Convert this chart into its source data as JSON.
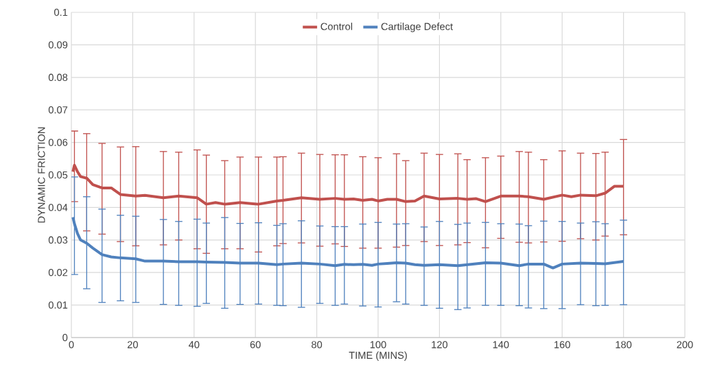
{
  "chart_data": {
    "type": "line",
    "xlabel": "TIME (MINS)",
    "ylabel": "DYNAMIC FRICTION",
    "xlim": [
      0,
      200
    ],
    "xticks": [
      0,
      20,
      40,
      60,
      80,
      100,
      120,
      140,
      160,
      180,
      200
    ],
    "ylim": [
      0,
      0.1
    ],
    "yticks": [
      0,
      0.01,
      0.02,
      0.03,
      0.04,
      0.05,
      0.06,
      0.07,
      0.08,
      0.09,
      0.1
    ],
    "grid": true,
    "legend": "top",
    "marker": "none",
    "line_style": "solid",
    "series": [
      {
        "name": "Control",
        "color": "#c0504d",
        "x": [
          0.5,
          1,
          2,
          3,
          5,
          7,
          10,
          13,
          16,
          21,
          24,
          30,
          35,
          41,
          44,
          47,
          50,
          55,
          61,
          67,
          69,
          75,
          81,
          86,
          89,
          92,
          95,
          98,
          100,
          103,
          106,
          109,
          112,
          115,
          120,
          126,
          129,
          132,
          135,
          140,
          146,
          149,
          154,
          160,
          163,
          166,
          171,
          174,
          177,
          180
        ],
        "values": [
          0.051,
          0.053,
          0.051,
          0.0495,
          0.049,
          0.047,
          0.046,
          0.046,
          0.044,
          0.0435,
          0.0437,
          0.043,
          0.0435,
          0.043,
          0.041,
          0.0415,
          0.041,
          0.0415,
          0.041,
          0.042,
          0.0422,
          0.043,
          0.0425,
          0.0428,
          0.0425,
          0.0426,
          0.0422,
          0.0425,
          0.042,
          0.0425,
          0.0425,
          0.0418,
          0.042,
          0.0435,
          0.0426,
          0.0428,
          0.0425,
          0.0427,
          0.0418,
          0.0435,
          0.0435,
          0.0433,
          0.0425,
          0.0438,
          0.0433,
          0.0438,
          0.0436,
          0.0444,
          0.0465,
          0.0465
        ],
        "errors": [
          null,
          [
            0.0418,
            0.0635
          ],
          null,
          null,
          [
            0.0328,
            0.0627
          ],
          null,
          [
            0.0318,
            0.0597
          ],
          null,
          [
            0.0295,
            0.0586
          ],
          [
            0.0282,
            0.0587
          ],
          null,
          [
            0.0285,
            0.0572
          ],
          [
            0.03,
            0.057
          ],
          [
            0.0273,
            0.0577
          ],
          [
            0.0259,
            0.0561
          ],
          null,
          [
            0.0273,
            0.0544
          ],
          [
            0.0273,
            0.0555
          ],
          [
            0.0263,
            0.0555
          ],
          [
            0.0282,
            0.0555
          ],
          [
            0.0289,
            0.0556
          ],
          [
            0.0291,
            0.0567
          ],
          [
            0.0281,
            0.0563
          ],
          [
            0.0288,
            0.0562
          ],
          [
            0.028,
            0.0562
          ],
          null,
          [
            0.0275,
            0.0556
          ],
          null,
          [
            0.0275,
            0.0553
          ],
          null,
          [
            0.0278,
            0.0565
          ],
          [
            0.0283,
            0.0544
          ],
          null,
          [
            0.0295,
            0.0567
          ],
          [
            0.0283,
            0.0563
          ],
          [
            0.0285,
            0.0565
          ],
          [
            0.0292,
            0.0547
          ],
          null,
          [
            0.0276,
            0.0553
          ],
          [
            0.0305,
            0.0558
          ],
          [
            0.0293,
            0.0572
          ],
          [
            0.0291,
            0.057
          ],
          [
            0.0294,
            0.0547
          ],
          [
            0.0296,
            0.0574
          ],
          null,
          [
            0.0304,
            0.0567
          ],
          [
            0.03,
            0.0566
          ],
          [
            0.0312,
            0.057
          ],
          null,
          [
            0.0316,
            0.0609
          ]
        ]
      },
      {
        "name": "Cartilage Defect",
        "color": "#4f81bd",
        "x": [
          0.5,
          1,
          2,
          3,
          5,
          7,
          10,
          13,
          16,
          21,
          24,
          30,
          35,
          41,
          44,
          50,
          55,
          61,
          67,
          69,
          75,
          81,
          86,
          89,
          92,
          95,
          98,
          100,
          103,
          106,
          109,
          112,
          115,
          120,
          126,
          129,
          135,
          140,
          146,
          149,
          154,
          157,
          160,
          166,
          171,
          174,
          180
        ],
        "values": [
          0.037,
          0.035,
          0.032,
          0.03,
          0.029,
          0.0275,
          0.0255,
          0.0248,
          0.0245,
          0.0242,
          0.0235,
          0.0235,
          0.0233,
          0.0233,
          0.0232,
          0.0231,
          0.0229,
          0.0229,
          0.0224,
          0.0226,
          0.0229,
          0.0226,
          0.0221,
          0.0225,
          0.0224,
          0.0225,
          0.0222,
          0.0226,
          0.0228,
          0.023,
          0.0229,
          0.0224,
          0.0222,
          0.0224,
          0.0221,
          0.0224,
          0.023,
          0.0229,
          0.0221,
          0.0226,
          0.0226,
          0.0214,
          0.0226,
          0.0229,
          0.0228,
          0.0227,
          0.0234
        ],
        "errors": [
          null,
          [
            0.0194,
            0.0494
          ],
          null,
          null,
          [
            0.015,
            0.0433
          ],
          null,
          [
            0.0108,
            0.0395
          ],
          null,
          [
            0.0113,
            0.0376
          ],
          [
            0.0108,
            0.0373
          ],
          null,
          [
            0.0102,
            0.0363
          ],
          [
            0.0099,
            0.0357
          ],
          [
            0.0096,
            0.0364
          ],
          [
            0.0105,
            0.0352
          ],
          [
            0.009,
            0.0369
          ],
          [
            0.0102,
            0.0351
          ],
          [
            0.0103,
            0.0353
          ],
          [
            0.0099,
            0.0345
          ],
          [
            0.0098,
            0.035
          ],
          [
            0.0093,
            0.0359
          ],
          [
            0.0105,
            0.0343
          ],
          [
            0.0099,
            0.0341
          ],
          [
            0.0103,
            0.0341
          ],
          null,
          [
            0.0097,
            0.0349
          ],
          null,
          [
            0.0094,
            0.0354
          ],
          null,
          [
            0.011,
            0.0349
          ],
          [
            0.0103,
            0.035
          ],
          null,
          [
            0.0099,
            0.034
          ],
          [
            0.009,
            0.0357
          ],
          [
            0.0086,
            0.0348
          ],
          [
            0.0091,
            0.0352
          ],
          [
            0.0099,
            0.0354
          ],
          [
            0.0099,
            0.035
          ],
          [
            0.0098,
            0.0349
          ],
          [
            0.0091,
            0.0344
          ],
          [
            0.0089,
            0.0358
          ],
          null,
          [
            0.0089,
            0.0357
          ],
          [
            0.0101,
            0.0352
          ],
          [
            0.0098,
            0.0356
          ],
          [
            0.0099,
            0.035
          ],
          [
            0.0101,
            0.0361
          ]
        ]
      }
    ]
  }
}
